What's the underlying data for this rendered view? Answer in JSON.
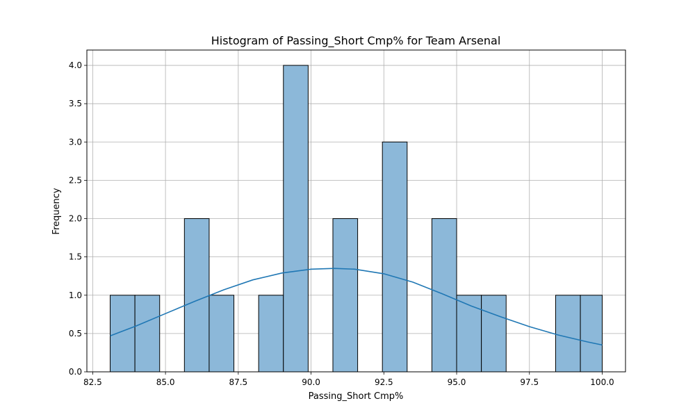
{
  "chart_data": {
    "type": "histogram",
    "title": "Histogram of Passing_Short Cmp% for Team Arsenal",
    "xlabel": "Passing_Short Cmp%",
    "ylabel": "Frequency",
    "xlim": [
      82.3,
      100.8
    ],
    "ylim": [
      0,
      4.2
    ],
    "xticks": [
      "82.5",
      "85.0",
      "87.5",
      "90.0",
      "92.5",
      "95.0",
      "97.5",
      "100.0"
    ],
    "yticks": [
      "0.0",
      "0.5",
      "1.0",
      "1.5",
      "2.0",
      "2.5",
      "3.0",
      "3.5",
      "4.0"
    ],
    "bins": [
      {
        "x0": 83.1,
        "x1": 83.95,
        "count": 1
      },
      {
        "x0": 83.95,
        "x1": 84.8,
        "count": 1
      },
      {
        "x0": 84.8,
        "x1": 85.65,
        "count": 0
      },
      {
        "x0": 85.65,
        "x1": 86.5,
        "count": 2
      },
      {
        "x0": 86.5,
        "x1": 87.35,
        "count": 1
      },
      {
        "x0": 87.35,
        "x1": 88.2,
        "count": 0
      },
      {
        "x0": 88.2,
        "x1": 89.05,
        "count": 1
      },
      {
        "x0": 89.05,
        "x1": 89.9,
        "count": 4
      },
      {
        "x0": 89.9,
        "x1": 90.75,
        "count": 0
      },
      {
        "x0": 90.75,
        "x1": 91.6,
        "count": 2
      },
      {
        "x0": 91.6,
        "x1": 92.45,
        "count": 0
      },
      {
        "x0": 92.45,
        "x1": 93.3,
        "count": 3
      },
      {
        "x0": 93.3,
        "x1": 94.15,
        "count": 0
      },
      {
        "x0": 94.15,
        "x1": 95.0,
        "count": 2
      },
      {
        "x0": 95.0,
        "x1": 95.85,
        "count": 1
      },
      {
        "x0": 95.85,
        "x1": 96.7,
        "count": 1
      },
      {
        "x0": 96.7,
        "x1": 97.55,
        "count": 0
      },
      {
        "x0": 97.55,
        "x1": 98.4,
        "count": 0
      },
      {
        "x0": 98.4,
        "x1": 99.25,
        "count": 1
      },
      {
        "x0": 99.25,
        "x1": 100.0,
        "count": 1
      }
    ],
    "kde": {
      "x": [
        83.1,
        84,
        85,
        86,
        87,
        88,
        89,
        90,
        90.8,
        91.5,
        92.5,
        93.5,
        94.5,
        95.5,
        96.5,
        97.5,
        98.5,
        99.5,
        100.0
      ],
      "y": [
        0.47,
        0.6,
        0.76,
        0.92,
        1.07,
        1.2,
        1.29,
        1.34,
        1.35,
        1.34,
        1.28,
        1.17,
        1.02,
        0.86,
        0.72,
        0.59,
        0.48,
        0.39,
        0.35
      ]
    },
    "grid": true,
    "colors": {
      "bar_fill": "#8cb8d9",
      "bar_edge": "#000000",
      "kde_line": "#1f77b4",
      "grid": "#b0b0b0"
    }
  }
}
